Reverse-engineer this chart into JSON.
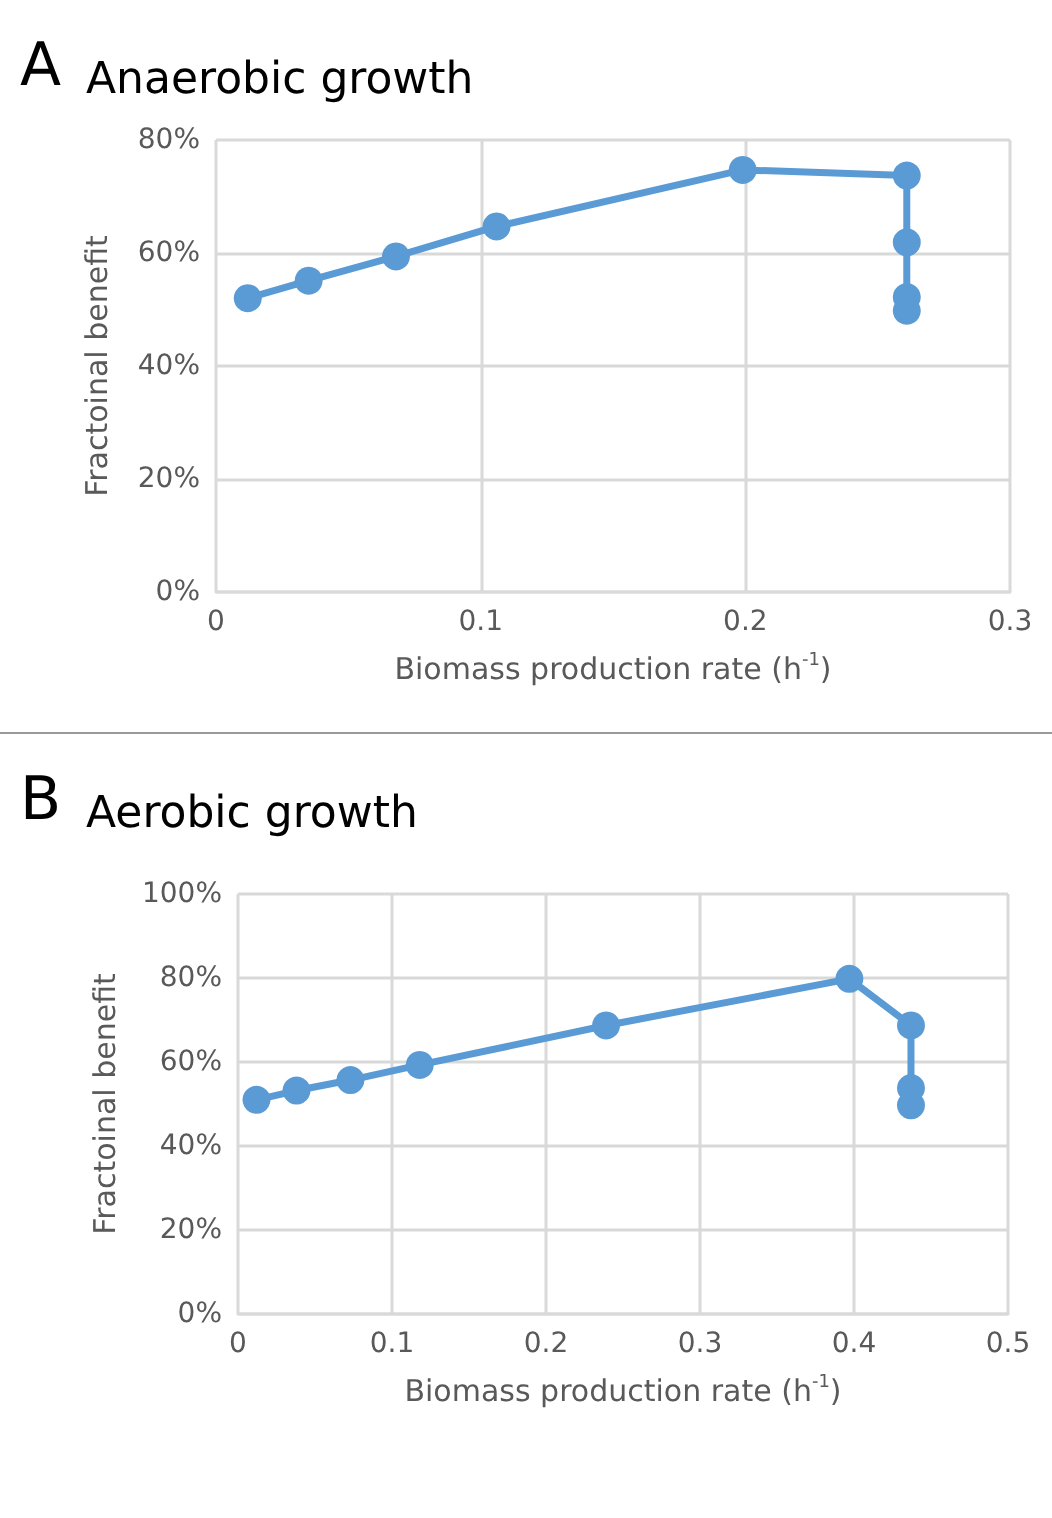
{
  "chart_data": [
    {
      "type": "line",
      "title": "Anaerobic growth",
      "annotations": [
        "A"
      ],
      "xlabel": "Biomass production rate (h$^{-1}$)",
      "ylabel": "Fractoinal benefit",
      "x": [
        0.012,
        0.035,
        0.068,
        0.106,
        0.199,
        0.261,
        0.261,
        0.261,
        0.261
      ],
      "series": [
        {
          "color": "#5b9bd5",
          "values": [
            52,
            55.1,
            59.4,
            64.7,
            74.7,
            73.7,
            61.9,
            52.2,
            49.8
          ]
        }
      ],
      "xlim": [
        0,
        0.3
      ],
      "xticks": [
        0,
        0.1,
        0.2,
        0.3
      ],
      "ylim": [
        0,
        80
      ],
      "yticks": [
        {
          "value": 0,
          "label": "0%"
        },
        {
          "value": 20,
          "label": "20%"
        },
        {
          "value": 40,
          "label": "40%"
        },
        {
          "value": 60,
          "label": "60%"
        },
        {
          "value": 80,
          "label": "80%"
        }
      ],
      "grid": true,
      "marker": "circle",
      "line_style": "solid"
    },
    {
      "type": "line",
      "title": "Aerobic growth",
      "annotations": [
        "B"
      ],
      "xlabel": "Biomass production rate (h$^{-1}$)",
      "ylabel": "Fractoinal benefit",
      "x": [
        0.012,
        0.038,
        0.073,
        0.118,
        0.239,
        0.397,
        0.437,
        0.437,
        0.437
      ],
      "series": [
        {
          "color": "#5b9bd5",
          "values": [
            51,
            53.2,
            55.7,
            59.3,
            68.7,
            79.8,
            68.7,
            53.8,
            49.7
          ]
        }
      ],
      "xlim": [
        0,
        0.5
      ],
      "xticks": [
        0,
        0.1,
        0.2,
        0.3,
        0.4,
        0.5
      ],
      "ylim": [
        0,
        100
      ],
      "yticks": [
        {
          "value": 0,
          "label": "0%"
        },
        {
          "value": 20,
          "label": "20%"
        },
        {
          "value": 40,
          "label": "40%"
        },
        {
          "value": 60,
          "label": "60%"
        },
        {
          "value": 80,
          "label": "80%"
        },
        {
          "value": 100,
          "label": "100%"
        }
      ],
      "grid": true,
      "marker": "circle",
      "line_style": "solid"
    }
  ]
}
